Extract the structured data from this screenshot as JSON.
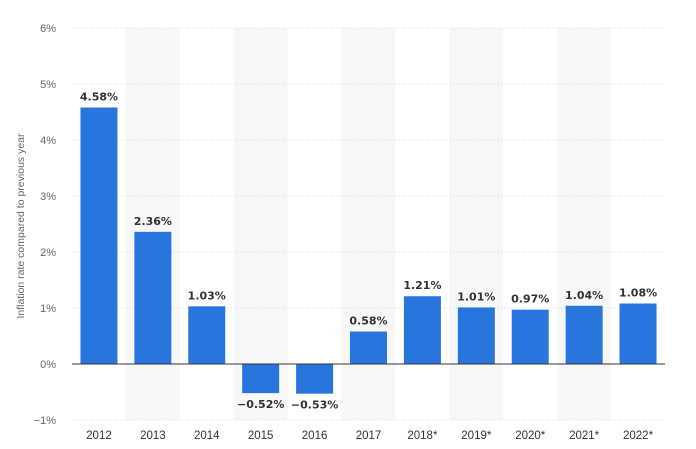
{
  "chart_data": {
    "type": "bar",
    "categories": [
      "2012",
      "2013",
      "2014",
      "2015",
      "2016",
      "2017",
      "2018*",
      "2019*",
      "2020*",
      "2021*",
      "2022*"
    ],
    "values": [
      4.58,
      2.36,
      1.03,
      -0.52,
      -0.53,
      0.58,
      1.21,
      1.01,
      0.97,
      1.04,
      1.08
    ],
    "value_labels": [
      "4.58%",
      "2.36%",
      "1.03%",
      "−0.52%",
      "−0.53%",
      "0.58%",
      "1.21%",
      "1.01%",
      "0.97%",
      "1.04%",
      "1.08%"
    ],
    "ylabel": "Inflation rate compared to previous year",
    "xlabel": "",
    "ylim": [
      -1,
      6
    ],
    "yticks": [
      -1,
      0,
      1,
      2,
      3,
      4,
      5,
      6
    ],
    "ytick_labels": [
      "−1%",
      "0%",
      "1%",
      "2%",
      "3%",
      "4%",
      "5%",
      "6%"
    ],
    "grid": true,
    "alternating_band_background": true,
    "bar_color": "#2876dd",
    "band_color": "#f7f7f7",
    "grid_color": "#d9d9d9"
  }
}
